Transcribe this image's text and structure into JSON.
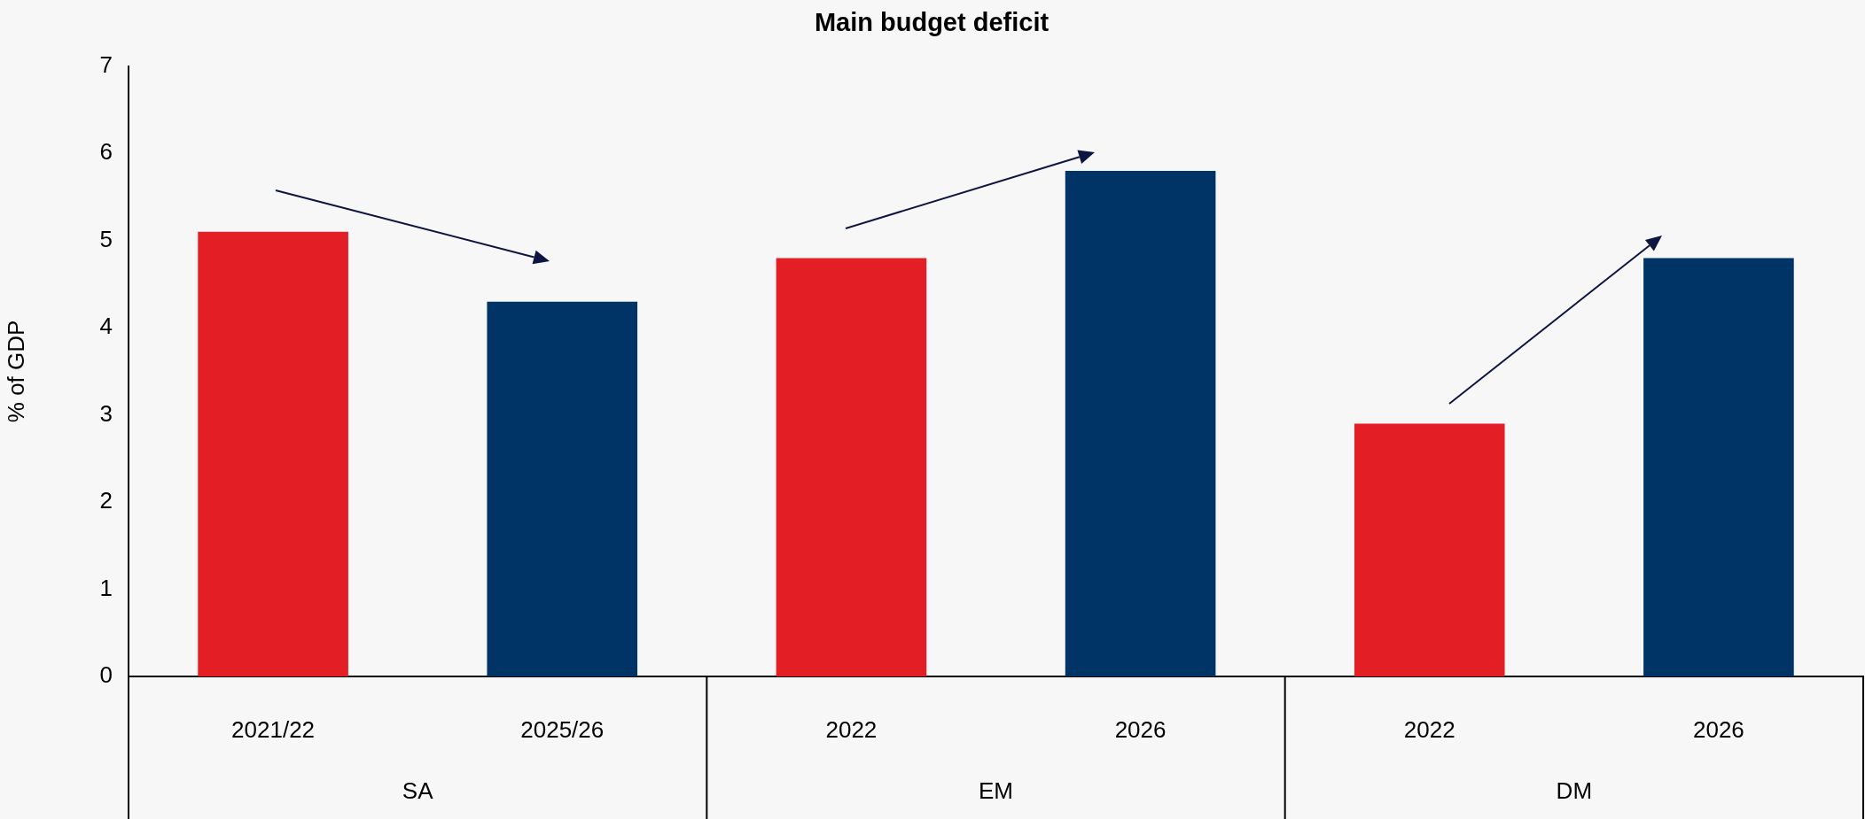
{
  "chart_data": {
    "type": "bar",
    "title": "Main budget deficit",
    "ylabel": "% of GDP",
    "categories": [
      "2021/22",
      "2025/26",
      "2022",
      "2026",
      "2022",
      "2026"
    ],
    "values": [
      5.1,
      4.3,
      4.8,
      5.8,
      2.9,
      4.8
    ],
    "colors": [
      "#e31e24",
      "#003366",
      "#e31e24",
      "#003366",
      "#e31e24",
      "#003366"
    ],
    "ylim": [
      0,
      7
    ],
    "yticks": [
      0,
      1,
      2,
      3,
      4,
      5,
      6,
      7
    ],
    "grid": false,
    "legend": false,
    "annotations": [
      "SA",
      "EM",
      "DM"
    ]
  }
}
